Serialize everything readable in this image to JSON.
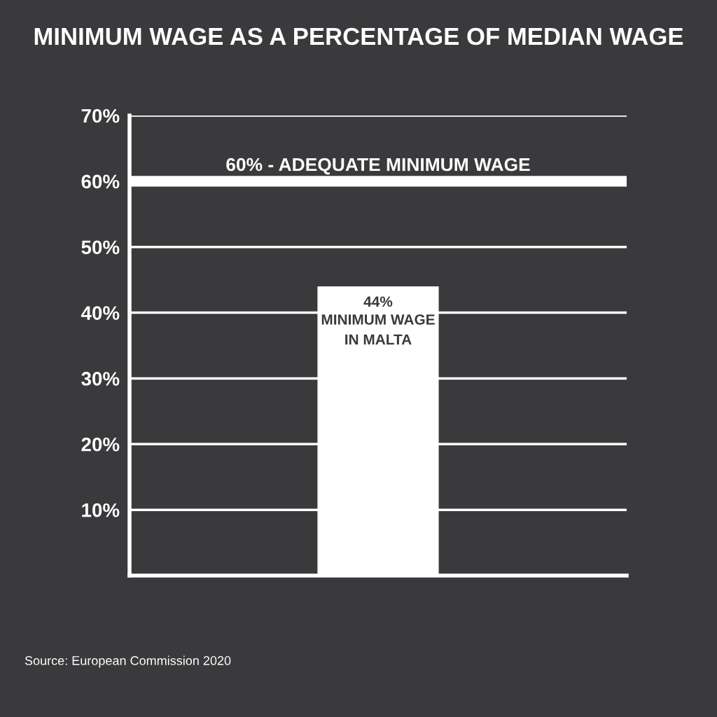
{
  "chart_data": {
    "type": "bar",
    "title": "MINIMUM WAGE AS A PERCENTAGE OF MEDIAN WAGE",
    "categories": [
      "MINIMUM WAGE\nIN MALTA"
    ],
    "values": [
      44
    ],
    "value_labels": [
      "44%"
    ],
    "color": "#ffffff",
    "ylim": [
      0,
      70
    ],
    "yticks": [
      {
        "value": 10,
        "label": "10%"
      },
      {
        "value": 20,
        "label": "20%"
      },
      {
        "value": 30,
        "label": "30%"
      },
      {
        "value": 40,
        "label": "40%"
      },
      {
        "value": 50,
        "label": "50%"
      },
      {
        "value": 60,
        "label": "60%"
      },
      {
        "value": 70,
        "label": "70%"
      }
    ],
    "grid": "y",
    "ref_lines": [
      {
        "axis": "y",
        "value": 60,
        "label": "60% - ADEQUATE MINIMUM WAGE",
        "color": "#ffffff"
      }
    ],
    "annotations": [
      "Source: European Commission 2020"
    ]
  }
}
